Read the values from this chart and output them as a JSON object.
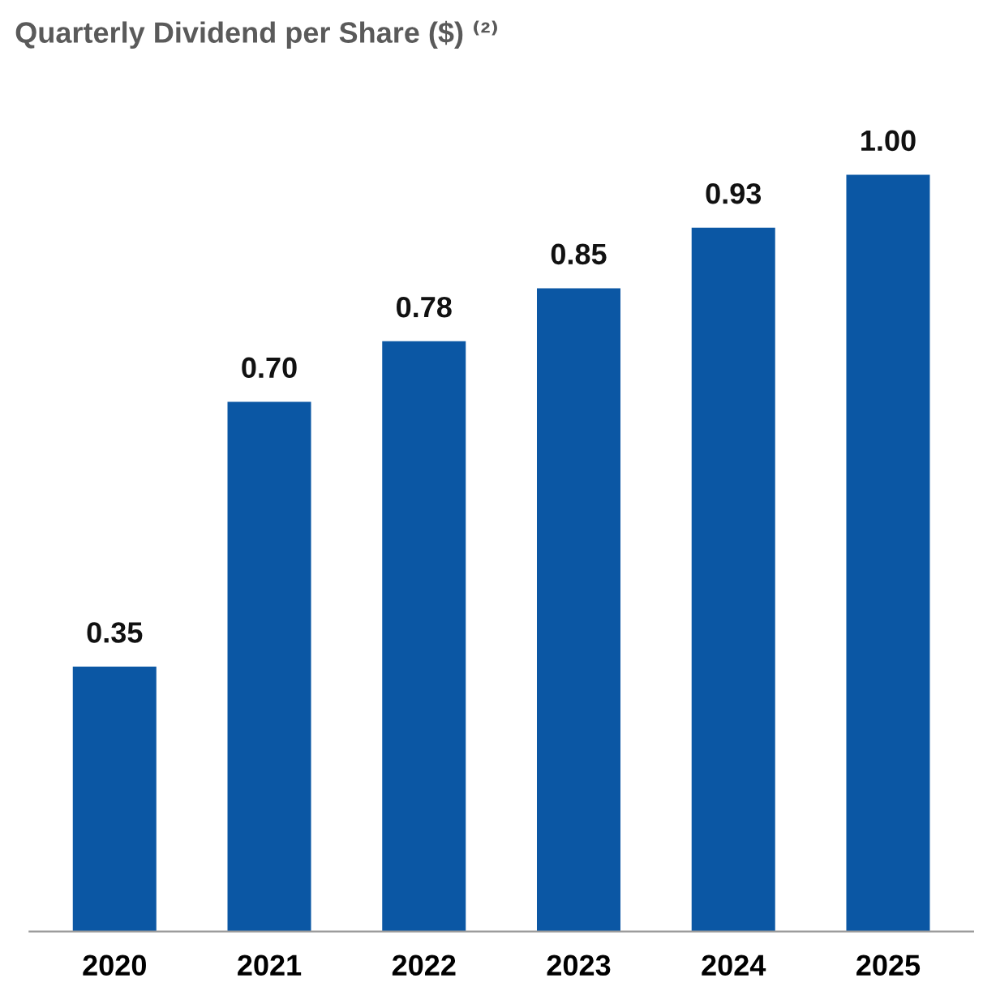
{
  "chart_data": {
    "type": "bar",
    "title": "Quarterly Dividend per Share ($) ⁽²⁾",
    "categories": [
      "2020",
      "2021",
      "2022",
      "2023",
      "2024",
      "2025"
    ],
    "values": [
      0.35,
      0.7,
      0.78,
      0.85,
      0.93,
      1.0
    ],
    "value_labels": [
      "0.35",
      "0.70",
      "0.78",
      "0.85",
      "0.93",
      "1.00"
    ],
    "color": "#0b57a4",
    "grid": false,
    "legend": false,
    "tick_labels": "x"
  }
}
